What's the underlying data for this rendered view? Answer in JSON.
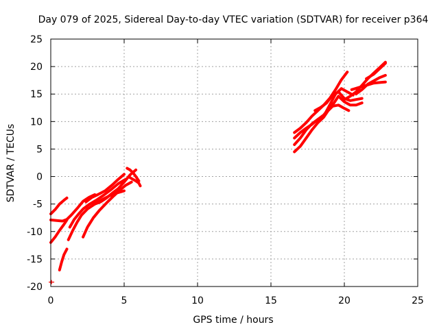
{
  "chart_data": {
    "type": "scatter",
    "title": "Day 079 of 2025, Sidereal Day-to-day VTEC variation (SDTVAR) for receiver p364",
    "xlabel": "GPS time / hours",
    "ylabel": "SDTVAR / TECUs",
    "xlim": [
      0,
      25
    ],
    "ylim": [
      -20,
      25
    ],
    "xticks": [
      "0",
      "5",
      "10",
      "15",
      "20",
      "25"
    ],
    "yticks": [
      "25",
      "20",
      "15",
      "10",
      "5",
      "0",
      "-5",
      "-10",
      "-15",
      "-20"
    ],
    "grid": true,
    "legend": "none",
    "color": "#ff0000",
    "series": [
      {
        "x": [
          0.0,
          0.3,
          0.6,
          0.9,
          1.1
        ],
        "y": [
          -6.8,
          -6.0,
          -5.0,
          -4.3,
          -3.9
        ]
      },
      {
        "x": [
          0.0,
          0.4,
          0.8,
          1.1,
          1.4,
          1.8,
          2.2,
          2.6,
          3.0
        ],
        "y": [
          -7.9,
          -8.0,
          -8.1,
          -7.8,
          -7.0,
          -5.8,
          -4.5,
          -3.8,
          -3.3
        ]
      },
      {
        "x": [
          0.0,
          0.3,
          0.6,
          0.9,
          1.1
        ],
        "y": [
          -12.0,
          -11.0,
          -9.8,
          -8.7,
          -7.9
        ]
      },
      {
        "x": [
          0.6,
          0.75,
          0.9,
          1.1
        ],
        "y": [
          -17.0,
          -15.5,
          -14.2,
          -13.2
        ]
      },
      {
        "x": [
          1.2,
          1.5,
          1.8,
          2.1,
          2.5,
          3.0,
          3.5,
          4.0,
          4.5,
          5.0
        ],
        "y": [
          -11.5,
          -9.8,
          -8.3,
          -7.0,
          -5.9,
          -5.0,
          -4.2,
          -3.5,
          -3.0,
          -2.6
        ]
      },
      {
        "x": [
          1.3,
          1.6,
          1.9,
          2.2,
          2.6,
          3.1,
          3.6,
          4.1,
          4.6,
          5.1
        ],
        "y": [
          -9.2,
          -7.8,
          -6.8,
          -5.9,
          -5.1,
          -4.3,
          -3.4,
          -2.4,
          -1.3,
          -0.5
        ]
      },
      {
        "x": [
          2.2,
          2.5,
          2.9,
          3.3,
          3.8,
          4.3,
          4.7,
          5.1,
          5.5
        ],
        "y": [
          -11.0,
          -9.2,
          -7.5,
          -6.2,
          -4.8,
          -3.5,
          -2.5,
          -1.6,
          -1.0
        ]
      },
      {
        "x": [
          2.4,
          2.8,
          3.2,
          3.7,
          4.2,
          4.6,
          5.0
        ],
        "y": [
          -4.6,
          -3.8,
          -3.3,
          -2.6,
          -1.5,
          -0.5,
          0.4
        ]
      },
      {
        "x": [
          3.0,
          3.4,
          3.8,
          4.2,
          4.6,
          5.0,
          5.4,
          5.8
        ],
        "y": [
          -5.0,
          -4.6,
          -3.9,
          -3.0,
          -2.2,
          -1.0,
          0.3,
          1.2
        ]
      },
      {
        "x": [
          5.2,
          5.4,
          5.6,
          5.8,
          6.0
        ],
        "y": [
          1.5,
          1.2,
          0.7,
          0.0,
          -0.8
        ]
      },
      {
        "x": [
          5.4,
          5.6,
          5.8,
          6.0,
          6.1
        ],
        "y": [
          -0.2,
          -0.5,
          -0.8,
          -1.2,
          -1.7
        ]
      },
      {
        "x": [
          16.6,
          17.0,
          17.4,
          17.8,
          18.2,
          18.6,
          18.9,
          19.2,
          19.6,
          20.0,
          20.3
        ],
        "y": [
          4.5,
          5.5,
          7.0,
          8.5,
          9.8,
          10.8,
          12.0,
          12.8,
          13.0,
          12.4,
          12.0
        ]
      },
      {
        "x": [
          16.6,
          17.0,
          17.4,
          17.8,
          18.2,
          18.6,
          19.0,
          19.3,
          19.6,
          20.0,
          20.4,
          20.8,
          21.2
        ],
        "y": [
          5.8,
          7.0,
          8.5,
          9.6,
          10.4,
          11.2,
          12.5,
          13.4,
          14.6,
          13.6,
          13.0,
          13.0,
          13.4
        ]
      },
      {
        "x": [
          16.6,
          17.0,
          17.4,
          17.8,
          18.2,
          18.6,
          19.0,
          19.4,
          19.8,
          20.2,
          20.6
        ],
        "y": [
          7.0,
          8.0,
          8.8,
          9.5,
          10.4,
          11.0,
          13.0,
          15.0,
          16.0,
          15.4,
          14.8
        ]
      },
      {
        "x": [
          16.6,
          17.0,
          17.4,
          17.8,
          18.2,
          18.6,
          19.0,
          19.4,
          19.8,
          20.2
        ],
        "y": [
          8.0,
          8.8,
          9.8,
          11.0,
          12.0,
          13.0,
          14.2,
          15.8,
          17.6,
          19.0
        ]
      },
      {
        "x": [
          18.0,
          18.4,
          18.8,
          19.2,
          19.6,
          20.0,
          20.4,
          20.8,
          21.2
        ],
        "y": [
          12.0,
          12.6,
          13.4,
          14.8,
          15.4,
          14.2,
          13.8,
          14.0,
          14.2
        ]
      },
      {
        "x": [
          20.0,
          20.4,
          20.8,
          21.2,
          21.6,
          22.0,
          22.4,
          22.8
        ],
        "y": [
          14.0,
          14.6,
          15.4,
          16.6,
          17.8,
          18.8,
          19.8,
          20.8
        ]
      },
      {
        "x": [
          20.5,
          21.0,
          21.5,
          22.0,
          22.4,
          22.8
        ],
        "y": [
          15.8,
          16.2,
          16.6,
          17.0,
          17.1,
          17.2
        ]
      },
      {
        "x": [
          20.8,
          21.2,
          21.6,
          22.0,
          22.4,
          22.8
        ],
        "y": [
          15.0,
          15.8,
          16.8,
          17.4,
          18.0,
          18.4
        ]
      },
      {
        "x": [
          21.5,
          22.0,
          22.4,
          22.8
        ],
        "y": [
          17.8,
          18.6,
          19.6,
          20.6
        ]
      }
    ],
    "markers": [
      {
        "x": 0.05,
        "y": -19.2
      }
    ]
  }
}
